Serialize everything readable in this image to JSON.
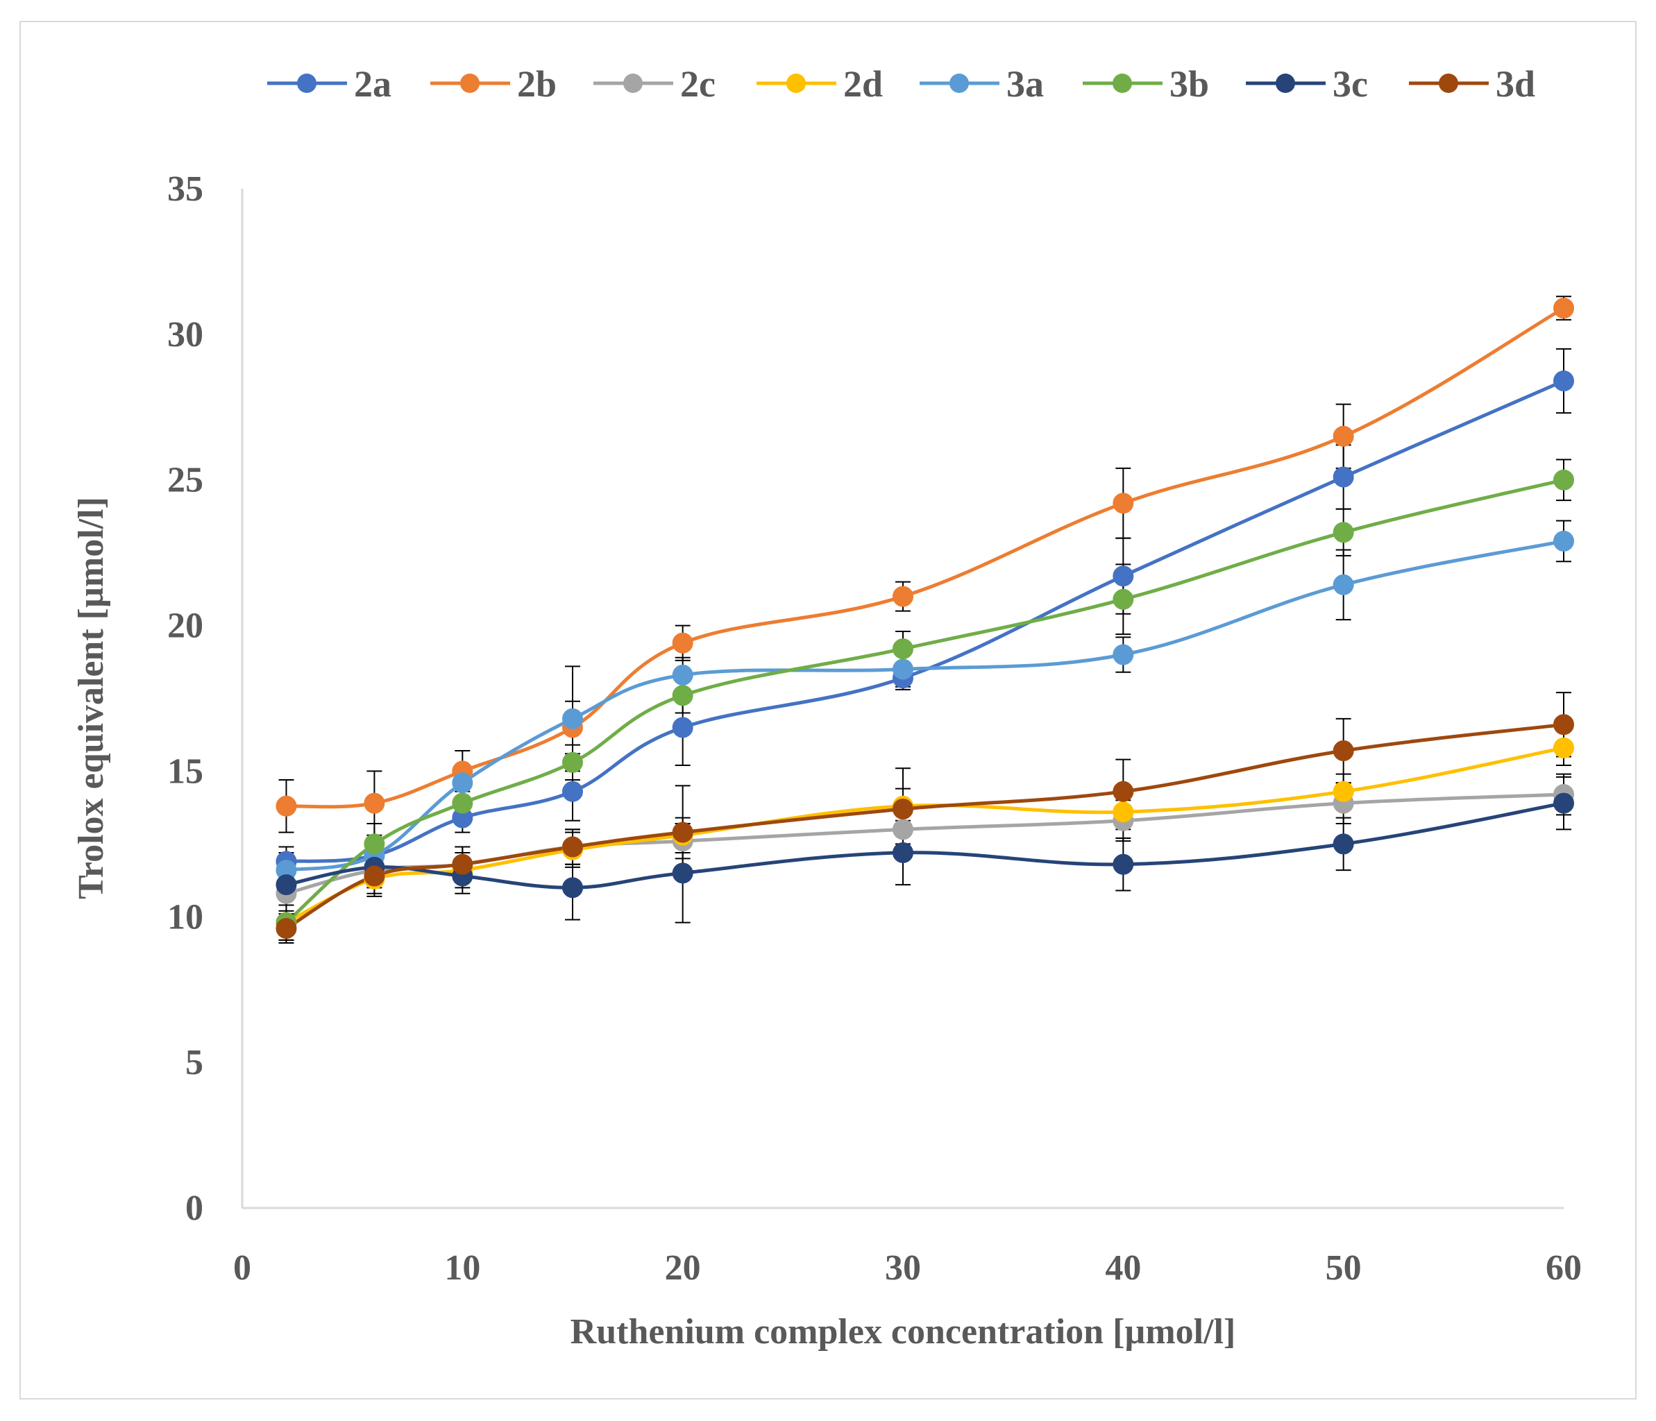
{
  "chart_data": {
    "type": "line",
    "title": "",
    "xlabel": "Ruthenium complex concentration [µmol/l]",
    "ylabel": "Trolox equivalent [µmol/l]",
    "xlim": [
      0,
      60
    ],
    "ylim": [
      0,
      35
    ],
    "x_ticks": [
      "0",
      "10",
      "20",
      "30",
      "40",
      "50",
      "60"
    ],
    "y_ticks": [
      "0",
      "5",
      "10",
      "15",
      "20",
      "25",
      "30",
      "35"
    ],
    "grid": false,
    "legend_position": "top",
    "x": [
      2,
      6,
      10,
      15,
      20,
      30,
      40,
      50,
      60
    ],
    "series": [
      {
        "name": "2a",
        "color": "#4472c4",
        "values": [
          11.9,
          12.1,
          13.4,
          14.3,
          16.5,
          18.2,
          21.7,
          25.1,
          28.4
        ],
        "errors": [
          0.5,
          0.6,
          0.5,
          1.0,
          1.3,
          0.4,
          1.3,
          1.1,
          1.1
        ]
      },
      {
        "name": "2b",
        "color": "#ed7d31",
        "values": [
          13.8,
          13.9,
          15.0,
          16.5,
          19.4,
          21.0,
          24.2,
          26.5,
          30.9
        ],
        "errors": [
          0.9,
          1.1,
          0.7,
          0.9,
          0.6,
          0.5,
          1.2,
          1.1,
          0.4
        ]
      },
      {
        "name": "2c",
        "color": "#a5a5a5",
        "values": [
          10.8,
          11.6,
          11.8,
          12.4,
          12.6,
          13.0,
          13.3,
          13.9,
          14.2
        ],
        "errors": [
          0.6,
          0.6,
          0.6,
          0.6,
          0.6,
          0.5,
          0.7,
          0.7,
          0.7
        ]
      },
      {
        "name": "2d",
        "color": "#ffc000",
        "values": [
          9.8,
          11.3,
          11.6,
          12.3,
          12.8,
          13.8,
          13.6,
          14.3,
          15.8
        ],
        "errors": [
          0.6,
          0.6,
          0.6,
          0.6,
          0.6,
          0.6,
          0.6,
          0.6,
          0.6
        ]
      },
      {
        "name": "3a",
        "color": "#5b9bd5",
        "values": [
          11.6,
          12.1,
          14.6,
          16.8,
          18.3,
          18.5,
          19.0,
          21.4,
          22.9
        ],
        "errors": [
          0.6,
          0.6,
          0.6,
          1.8,
          0.6,
          0.6,
          0.6,
          1.2,
          0.7
        ]
      },
      {
        "name": "3b",
        "color": "#70ad47",
        "values": [
          9.8,
          12.5,
          13.9,
          15.3,
          17.6,
          19.2,
          20.9,
          23.2,
          25.0
        ],
        "errors": [
          0.6,
          0.7,
          0.6,
          0.6,
          0.6,
          0.6,
          1.2,
          0.8,
          0.7
        ]
      },
      {
        "name": "3c",
        "color": "#264478",
        "values": [
          11.1,
          11.7,
          11.4,
          11.0,
          11.5,
          12.2,
          11.8,
          12.5,
          13.9
        ],
        "errors": [
          0.5,
          0.5,
          0.6,
          1.1,
          1.7,
          1.1,
          0.9,
          0.9,
          0.9
        ]
      },
      {
        "name": "3d",
        "color": "#9e480e",
        "values": [
          9.6,
          11.4,
          11.8,
          12.4,
          12.9,
          13.7,
          14.3,
          15.7,
          16.6
        ],
        "errors": [
          0.5,
          0.6,
          0.6,
          0.6,
          1.6,
          1.4,
          1.1,
          1.1,
          1.1
        ]
      }
    ]
  }
}
